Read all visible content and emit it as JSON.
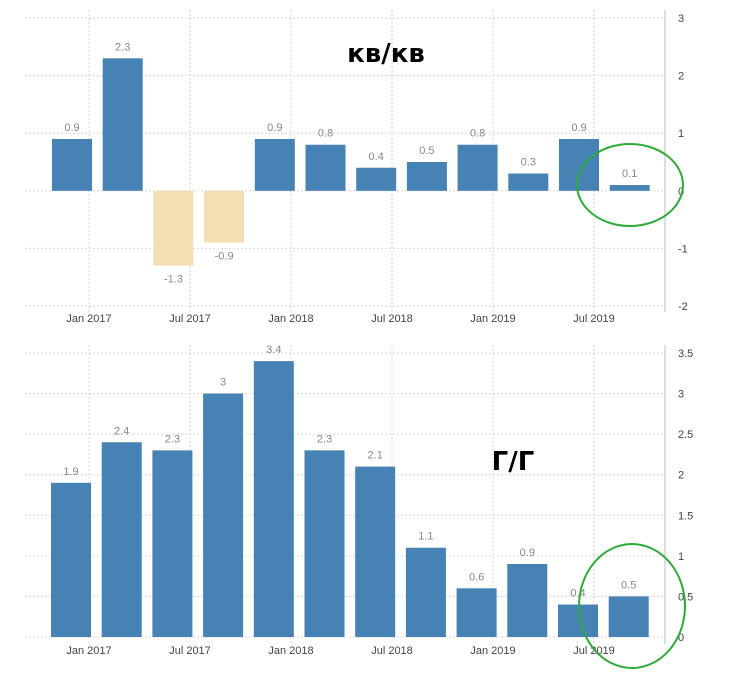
{
  "chart_data": [
    {
      "type": "bar",
      "title": "кв/кв",
      "x_ticks": [
        "Jan 2017",
        "Jul 2017",
        "Jan 2018",
        "Jul 2018",
        "Jan 2019",
        "Jul 2019"
      ],
      "y_ticks": [
        "3",
        "2",
        "1",
        "0",
        "-1",
        "-2"
      ],
      "ylim": [
        -2,
        3
      ],
      "values": [
        0.9,
        2.3,
        -1.3,
        -0.9,
        0.9,
        0.8,
        0.4,
        0.5,
        0.8,
        0.3,
        0.9,
        0.1
      ],
      "labels": [
        "0.9",
        "2.3",
        "-1.3",
        "-0.9",
        "0.9",
        "0.8",
        "0.4",
        "0.5",
        "0.8",
        "0.3",
        "0.9",
        "0.1"
      ],
      "grid": true,
      "colors": {
        "positive": "#4682b4",
        "negative": "#f5deb3"
      },
      "highlight_color": "#2eaa3a"
    },
    {
      "type": "bar",
      "title": "Г/Г",
      "x_ticks": [
        "Jan 2017",
        "Jul 2017",
        "Jan 2018",
        "Jul 2018",
        "Jan 2019",
        "Jul 2019"
      ],
      "y_ticks": [
        "3.5",
        "3",
        "2.5",
        "2",
        "1.5",
        "1",
        "0.5",
        "0"
      ],
      "ylim": [
        0,
        3.5
      ],
      "values": [
        1.9,
        2.4,
        2.3,
        3.0,
        3.4,
        2.3,
        2.1,
        1.1,
        0.6,
        0.9,
        0.4,
        0.5
      ],
      "labels": [
        "1.9",
        "2.4",
        "2.3",
        "3",
        "3.4",
        "2.3",
        "2.1",
        "1.1",
        "0.6",
        "0.9",
        "0.4",
        "0.5"
      ],
      "grid": true,
      "colors": {
        "positive": "#4682b4",
        "negative": "#f5deb3"
      },
      "highlight_color": "#2eaa3a"
    }
  ]
}
